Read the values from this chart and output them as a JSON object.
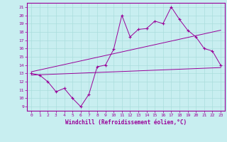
{
  "xlabel": "Windchill (Refroidissement éolien,°C)",
  "bg_color": "#c8eef0",
  "line_color": "#990099",
  "grid_color": "#aadddd",
  "x_main": [
    0,
    1,
    2,
    3,
    4,
    5,
    6,
    7,
    8,
    9,
    10,
    11,
    12,
    13,
    14,
    15,
    16,
    17,
    18,
    19,
    20,
    21,
    22,
    23
  ],
  "y_main": [
    13.0,
    12.8,
    12.0,
    10.8,
    11.2,
    10.0,
    9.0,
    10.5,
    13.8,
    14.0,
    15.9,
    20.0,
    17.4,
    18.3,
    18.4,
    19.3,
    19.0,
    21.0,
    19.5,
    18.2,
    17.4,
    16.0,
    15.7,
    14.0
  ],
  "upper_start": 13.2,
  "upper_end": 18.2,
  "lower_start": 12.8,
  "lower_end": 13.7,
  "xlim": [
    -0.5,
    23.5
  ],
  "ylim": [
    8.5,
    21.5
  ],
  "yticks": [
    9,
    10,
    11,
    12,
    13,
    14,
    15,
    16,
    17,
    18,
    19,
    20,
    21
  ],
  "xticks": [
    0,
    1,
    2,
    3,
    4,
    5,
    6,
    7,
    8,
    9,
    10,
    11,
    12,
    13,
    14,
    15,
    16,
    17,
    18,
    19,
    20,
    21,
    22,
    23
  ],
  "font_size_ticks": 4.5,
  "font_size_xlabel": 5.5
}
